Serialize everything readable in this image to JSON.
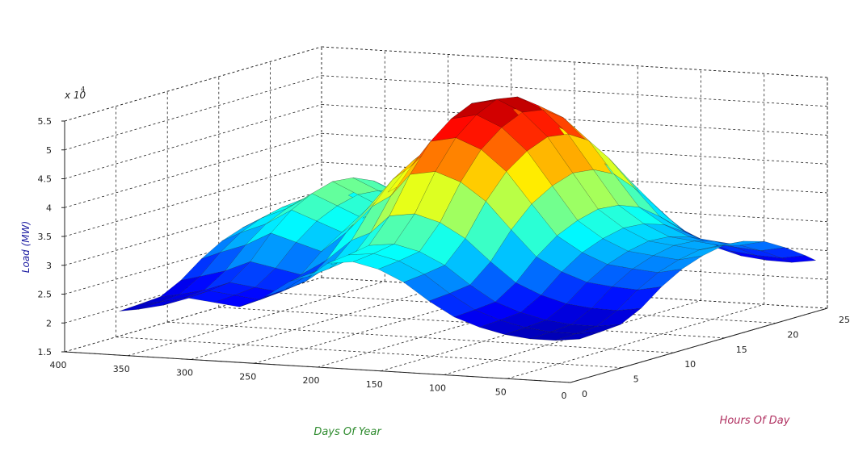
{
  "chart_data": {
    "type": "surface",
    "title": "",
    "xlabel": "Days Of Year",
    "ylabel": "Hours Of Day",
    "zlabel": "Load (MW)",
    "z_exponent_label": "x 10",
    "z_exponent_power": "4",
    "xlim": [
      0,
      400
    ],
    "ylim": [
      0,
      25
    ],
    "zlim": [
      1.5,
      5.5
    ],
    "x_ticks": [
      "0",
      "50",
      "100",
      "150",
      "200",
      "250",
      "300",
      "350",
      "400"
    ],
    "y_ticks": [
      "0",
      "5",
      "10",
      "15",
      "20",
      "25"
    ],
    "z_ticks": [
      "1.5",
      "2",
      "2.5",
      "3",
      "3.5",
      "4",
      "4.5",
      "5",
      "5.5"
    ],
    "z_unit_scale": 10000,
    "colormap": [
      "#00008f",
      "#0000ff",
      "#0080ff",
      "#00ffff",
      "#80ff80",
      "#ffff00",
      "#ff8000",
      "#ff0000",
      "#800000"
    ],
    "label_colors": {
      "xlabel": "#2e8b2e",
      "ylabel": "#b03060",
      "zlabel": "#1a1aa0"
    },
    "grid": true,
    "days": [
      1,
      20,
      40,
      60,
      80,
      100,
      120,
      140,
      160,
      180,
      200,
      215,
      230,
      250,
      270,
      290,
      310,
      330,
      350,
      365
    ],
    "hours": [
      1,
      3,
      5,
      7,
      9,
      11,
      13,
      15,
      17,
      19,
      21,
      23,
      24
    ],
    "daily_peak": [
      3.1,
      3.0,
      3.05,
      3.1,
      3.3,
      3.6,
      4.2,
      4.8,
      5.2,
      5.4,
      5.3,
      4.8,
      4.5,
      3.9,
      3.4,
      3.6,
      3.8,
      3.5,
      3.3,
      3.1
    ],
    "daily_base": [
      2.2,
      2.15,
      2.15,
      2.2,
      2.3,
      2.45,
      2.7,
      3.0,
      3.2,
      3.3,
      3.25,
      3.0,
      2.9,
      2.6,
      2.4,
      2.45,
      2.5,
      2.35,
      2.25,
      2.2
    ],
    "hourly_profile": [
      0.0,
      0.02,
      0.05,
      0.25,
      0.55,
      0.78,
      0.92,
      1.0,
      0.97,
      0.85,
      0.62,
      0.35,
      0.2
    ]
  }
}
